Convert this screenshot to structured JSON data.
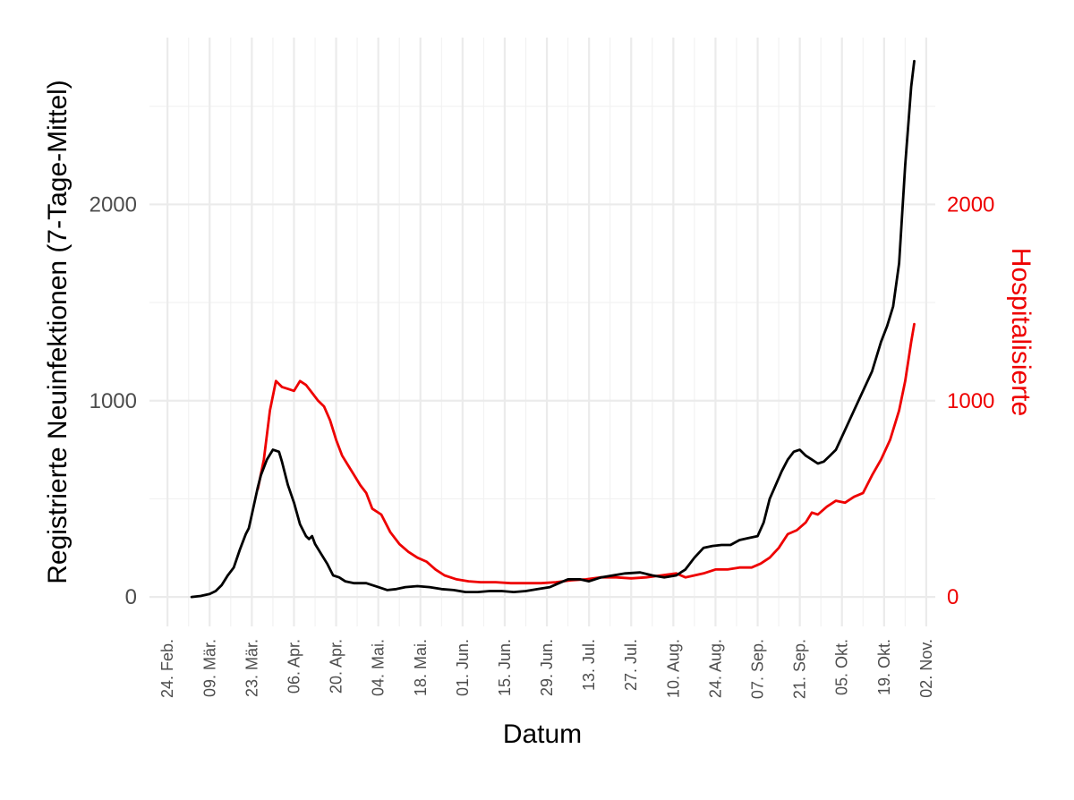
{
  "chart_data": {
    "type": "line",
    "xlabel": "Datum",
    "ylabel": "Registrierte Neuinfektionen (7-Tage-Mittel)",
    "y2label": "Hospitalisierte",
    "xlim": [
      "2020-02-18",
      "2020-11-05"
    ],
    "ylim": [
      -150,
      2850
    ],
    "y2lim": [
      -150,
      2850
    ],
    "yticks": [
      "0",
      "1000",
      "2000"
    ],
    "y2ticks": [
      "0",
      "1000",
      "2000"
    ],
    "ytick_values": [
      0,
      1000,
      2000
    ],
    "y2tick_values": [
      0,
      1000,
      2000
    ],
    "xticks": [
      {
        "date": "2020-02-24",
        "label": "24. Feb."
      },
      {
        "date": "2020-03-09",
        "label": "09. Mär."
      },
      {
        "date": "2020-03-23",
        "label": "23. Mär."
      },
      {
        "date": "2020-04-06",
        "label": "06. Apr."
      },
      {
        "date": "2020-04-20",
        "label": "20. Apr."
      },
      {
        "date": "2020-05-04",
        "label": "04. Mai."
      },
      {
        "date": "2020-05-18",
        "label": "18. Mai."
      },
      {
        "date": "2020-06-01",
        "label": "01. Jun."
      },
      {
        "date": "2020-06-15",
        "label": "15. Jun."
      },
      {
        "date": "2020-06-29",
        "label": "29. Jun."
      },
      {
        "date": "2020-07-13",
        "label": "13. Jul."
      },
      {
        "date": "2020-07-27",
        "label": "27. Jul."
      },
      {
        "date": "2020-08-10",
        "label": "10. Aug."
      },
      {
        "date": "2020-08-24",
        "label": "24. Aug."
      },
      {
        "date": "2020-09-07",
        "label": "07. Sep."
      },
      {
        "date": "2020-09-21",
        "label": "21. Sep."
      },
      {
        "date": "2020-10-05",
        "label": "05. Okt."
      },
      {
        "date": "2020-10-19",
        "label": "19. Okt."
      },
      {
        "date": "2020-11-02",
        "label": "02. Nov."
      }
    ],
    "grid": true,
    "colors": {
      "infections": "#000000",
      "hospitalized": "#ee0000"
    },
    "series": [
      {
        "axis": "left",
        "points": [
          [
            "2020-03-03",
            0
          ],
          [
            "2020-03-06",
            5
          ],
          [
            "2020-03-09",
            15
          ],
          [
            "2020-03-11",
            30
          ],
          [
            "2020-03-13",
            60
          ],
          [
            "2020-03-15",
            110
          ],
          [
            "2020-03-17",
            150
          ],
          [
            "2020-03-19",
            240
          ],
          [
            "2020-03-21",
            320
          ],
          [
            "2020-03-22",
            350
          ],
          [
            "2020-03-23",
            420
          ],
          [
            "2020-03-25",
            560
          ],
          [
            "2020-03-26",
            620
          ],
          [
            "2020-03-28",
            700
          ],
          [
            "2020-03-30",
            750
          ],
          [
            "2020-04-01",
            740
          ],
          [
            "2020-04-02",
            690
          ],
          [
            "2020-04-04",
            570
          ],
          [
            "2020-04-06",
            480
          ],
          [
            "2020-04-08",
            370
          ],
          [
            "2020-04-10",
            310
          ],
          [
            "2020-04-11",
            295
          ],
          [
            "2020-04-12",
            310
          ],
          [
            "2020-04-13",
            270
          ],
          [
            "2020-04-15",
            220
          ],
          [
            "2020-04-17",
            170
          ],
          [
            "2020-04-19",
            110
          ],
          [
            "2020-04-21",
            100
          ],
          [
            "2020-04-23",
            80
          ],
          [
            "2020-04-26",
            70
          ],
          [
            "2020-04-30",
            70
          ],
          [
            "2020-05-04",
            50
          ],
          [
            "2020-05-07",
            35
          ],
          [
            "2020-05-10",
            40
          ],
          [
            "2020-05-13",
            50
          ],
          [
            "2020-05-17",
            55
          ],
          [
            "2020-05-21",
            50
          ],
          [
            "2020-05-25",
            40
          ],
          [
            "2020-05-29",
            35
          ],
          [
            "2020-06-02",
            25
          ],
          [
            "2020-06-06",
            25
          ],
          [
            "2020-06-10",
            30
          ],
          [
            "2020-06-14",
            30
          ],
          [
            "2020-06-18",
            25
          ],
          [
            "2020-06-22",
            30
          ],
          [
            "2020-06-26",
            40
          ],
          [
            "2020-06-30",
            50
          ],
          [
            "2020-07-03",
            70
          ],
          [
            "2020-07-06",
            90
          ],
          [
            "2020-07-10",
            90
          ],
          [
            "2020-07-13",
            80
          ],
          [
            "2020-07-17",
            100
          ],
          [
            "2020-07-21",
            110
          ],
          [
            "2020-07-25",
            120
          ],
          [
            "2020-07-30",
            125
          ],
          [
            "2020-08-03",
            110
          ],
          [
            "2020-08-07",
            100
          ],
          [
            "2020-08-11",
            110
          ],
          [
            "2020-08-14",
            140
          ],
          [
            "2020-08-17",
            200
          ],
          [
            "2020-08-20",
            250
          ],
          [
            "2020-08-23",
            260
          ],
          [
            "2020-08-26",
            265
          ],
          [
            "2020-08-29",
            265
          ],
          [
            "2020-09-01",
            290
          ],
          [
            "2020-09-04",
            300
          ],
          [
            "2020-09-07",
            310
          ],
          [
            "2020-09-09",
            380
          ],
          [
            "2020-09-11",
            500
          ],
          [
            "2020-09-13",
            570
          ],
          [
            "2020-09-15",
            640
          ],
          [
            "2020-09-17",
            700
          ],
          [
            "2020-09-19",
            740
          ],
          [
            "2020-09-21",
            750
          ],
          [
            "2020-09-23",
            720
          ],
          [
            "2020-09-25",
            700
          ],
          [
            "2020-09-27",
            680
          ],
          [
            "2020-09-29",
            690
          ],
          [
            "2020-10-01",
            720
          ],
          [
            "2020-10-03",
            750
          ],
          [
            "2020-10-06",
            850
          ],
          [
            "2020-10-09",
            950
          ],
          [
            "2020-10-12",
            1050
          ],
          [
            "2020-10-15",
            1150
          ],
          [
            "2020-10-18",
            1300
          ],
          [
            "2020-10-20",
            1380
          ],
          [
            "2020-10-22",
            1480
          ],
          [
            "2020-10-24",
            1700
          ],
          [
            "2020-10-26",
            2200
          ],
          [
            "2020-10-28",
            2600
          ],
          [
            "2020-10-29",
            2730
          ]
        ]
      },
      {
        "axis": "right",
        "points": [
          [
            "2020-03-25",
            550
          ],
          [
            "2020-03-27",
            700
          ],
          [
            "2020-03-29",
            950
          ],
          [
            "2020-03-31",
            1100
          ],
          [
            "2020-04-02",
            1070
          ],
          [
            "2020-04-04",
            1060
          ],
          [
            "2020-04-06",
            1050
          ],
          [
            "2020-04-08",
            1100
          ],
          [
            "2020-04-10",
            1080
          ],
          [
            "2020-04-12",
            1040
          ],
          [
            "2020-04-14",
            1000
          ],
          [
            "2020-04-16",
            970
          ],
          [
            "2020-04-18",
            900
          ],
          [
            "2020-04-20",
            800
          ],
          [
            "2020-04-22",
            720
          ],
          [
            "2020-04-24",
            670
          ],
          [
            "2020-04-26",
            620
          ],
          [
            "2020-04-28",
            570
          ],
          [
            "2020-04-30",
            530
          ],
          [
            "2020-05-02",
            450
          ],
          [
            "2020-05-05",
            420
          ],
          [
            "2020-05-08",
            330
          ],
          [
            "2020-05-11",
            270
          ],
          [
            "2020-05-14",
            230
          ],
          [
            "2020-05-17",
            200
          ],
          [
            "2020-05-20",
            180
          ],
          [
            "2020-05-23",
            140
          ],
          [
            "2020-05-26",
            110
          ],
          [
            "2020-05-30",
            90
          ],
          [
            "2020-06-03",
            80
          ],
          [
            "2020-06-07",
            75
          ],
          [
            "2020-06-12",
            75
          ],
          [
            "2020-06-17",
            70
          ],
          [
            "2020-06-22",
            70
          ],
          [
            "2020-06-27",
            70
          ],
          [
            "2020-07-02",
            75
          ],
          [
            "2020-07-07",
            85
          ],
          [
            "2020-07-12",
            90
          ],
          [
            "2020-07-17",
            100
          ],
          [
            "2020-07-22",
            100
          ],
          [
            "2020-07-27",
            95
          ],
          [
            "2020-08-01",
            100
          ],
          [
            "2020-08-06",
            110
          ],
          [
            "2020-08-11",
            120
          ],
          [
            "2020-08-14",
            100
          ],
          [
            "2020-08-17",
            110
          ],
          [
            "2020-08-20",
            120
          ],
          [
            "2020-08-24",
            140
          ],
          [
            "2020-08-28",
            140
          ],
          [
            "2020-09-01",
            150
          ],
          [
            "2020-09-05",
            150
          ],
          [
            "2020-09-08",
            170
          ],
          [
            "2020-09-11",
            200
          ],
          [
            "2020-09-14",
            250
          ],
          [
            "2020-09-17",
            320
          ],
          [
            "2020-09-20",
            340
          ],
          [
            "2020-09-23",
            380
          ],
          [
            "2020-09-25",
            430
          ],
          [
            "2020-09-27",
            420
          ],
          [
            "2020-09-30",
            460
          ],
          [
            "2020-10-03",
            490
          ],
          [
            "2020-10-06",
            480
          ],
          [
            "2020-10-09",
            510
          ],
          [
            "2020-10-12",
            530
          ],
          [
            "2020-10-15",
            620
          ],
          [
            "2020-10-18",
            700
          ],
          [
            "2020-10-21",
            800
          ],
          [
            "2020-10-24",
            950
          ],
          [
            "2020-10-26",
            1100
          ],
          [
            "2020-10-28",
            1300
          ],
          [
            "2020-10-29",
            1390
          ]
        ]
      }
    ]
  }
}
